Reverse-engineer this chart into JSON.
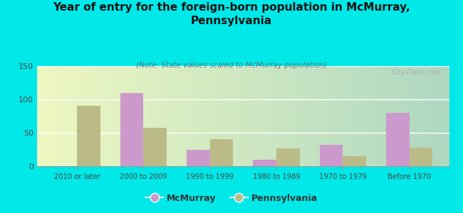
{
  "title": "Year of entry for the foreign-born population in McMurray,\nPennsylvania",
  "subtitle": "(Note: State values scaled to McMurray population)",
  "categories": [
    "2010 or later",
    "2000 to 2009",
    "1990 to 1999",
    "1980 to 1989",
    "1970 to 1979",
    "Before 1970"
  ],
  "mcmurray": [
    0,
    110,
    25,
    10,
    32,
    80
  ],
  "pennsylvania": [
    90,
    57,
    40,
    27,
    15,
    28
  ],
  "mcmurray_color": "#cc99cc",
  "pennsylvania_color": "#bbbb88",
  "background_color": "#00e8e8",
  "ylim": [
    0,
    150
  ],
  "yticks": [
    0,
    50,
    100,
    150
  ],
  "bar_width": 0.35,
  "watermark": "City-Data.com"
}
